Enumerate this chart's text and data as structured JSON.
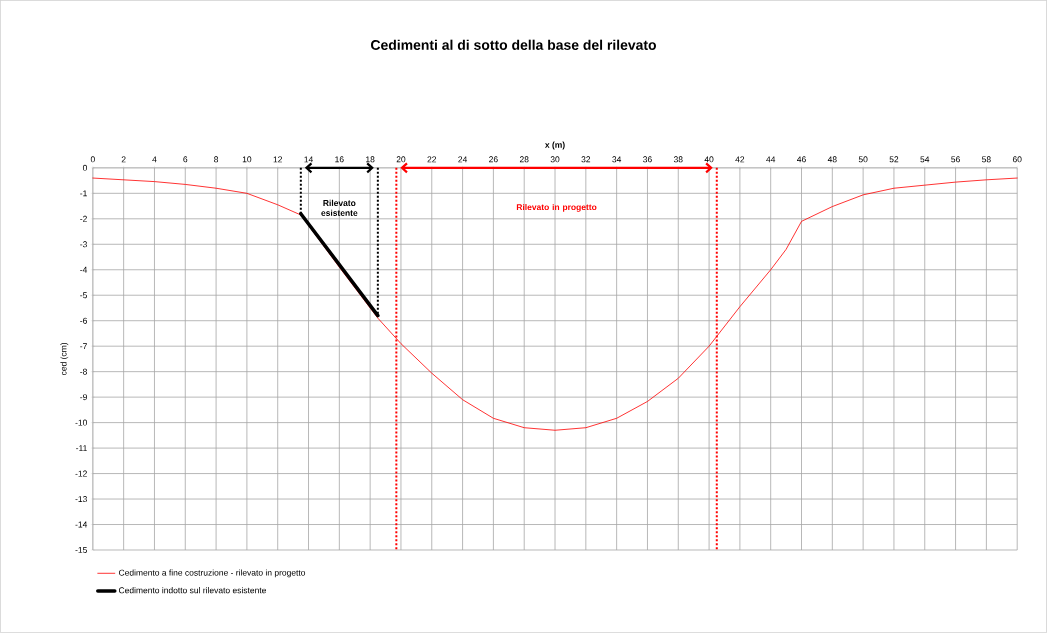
{
  "chart_data": {
    "type": "line",
    "title": "Cedimenti al di sotto della base del rilevato",
    "xlabel": "x (m)",
    "ylabel": "ced (cm)",
    "series": [
      {
        "name": "Cedimento a fine costruzione - rilevato in progetto",
        "color": "#ff0000",
        "x": [
          0,
          2,
          4,
          6,
          8,
          10,
          12,
          13.5,
          16,
          18.5,
          20,
          22,
          24,
          26,
          28,
          30,
          32,
          34,
          36,
          38,
          40,
          42,
          44,
          45,
          46,
          48,
          50,
          52,
          54,
          56,
          58,
          60
        ],
        "values": [
          -0.4,
          -0.47,
          -0.54,
          -0.65,
          -0.8,
          -1.0,
          -1.45,
          -1.85,
          -3.9,
          -5.9,
          -6.9,
          -8.06,
          -9.1,
          -9.83,
          -10.2,
          -10.3,
          -10.2,
          -9.83,
          -9.17,
          -8.26,
          -7.0,
          -5.45,
          -4.0,
          -3.2,
          -2.1,
          -1.52,
          -1.06,
          -0.8,
          -0.68,
          -0.56,
          -0.47,
          -0.4
        ]
      },
      {
        "name": "Cedimento indotto sul rilevato esistente",
        "color": "#000000",
        "x": [
          13.5,
          18.5
        ],
        "values": [
          -1.8,
          -5.8
        ]
      }
    ],
    "xlim": [
      0,
      60
    ],
    "xticks": [
      0,
      2,
      4,
      6,
      8,
      10,
      12,
      14,
      16,
      18,
      20,
      22,
      24,
      26,
      28,
      30,
      32,
      34,
      36,
      38,
      40,
      42,
      44,
      46,
      48,
      50,
      52,
      54,
      56,
      58,
      60
    ],
    "ylim": [
      -15,
      0
    ],
    "yticks": [
      0,
      -1,
      -2,
      -3,
      -4,
      -5,
      -6,
      -7,
      -8,
      -9,
      -10,
      -11,
      -12,
      -13,
      -14,
      -15
    ],
    "ref_lines": [
      {
        "axis": "x",
        "value": 13.5,
        "color": "#000000",
        "line_style": "dotted"
      },
      {
        "axis": "x",
        "value": 18.5,
        "color": "#000000",
        "line_style": "dotted"
      },
      {
        "axis": "x",
        "value": 19.7,
        "color": "#ff0000",
        "line_style": "dotted"
      },
      {
        "axis": "x",
        "value": 40.5,
        "color": "#ff0000",
        "line_style": "dotted"
      }
    ],
    "annotations": [
      "Rilevato esistente",
      "Rilevato in progetto"
    ],
    "grid": true,
    "legend": "bottom left",
    "marker": "none",
    "line_style": "solid"
  }
}
